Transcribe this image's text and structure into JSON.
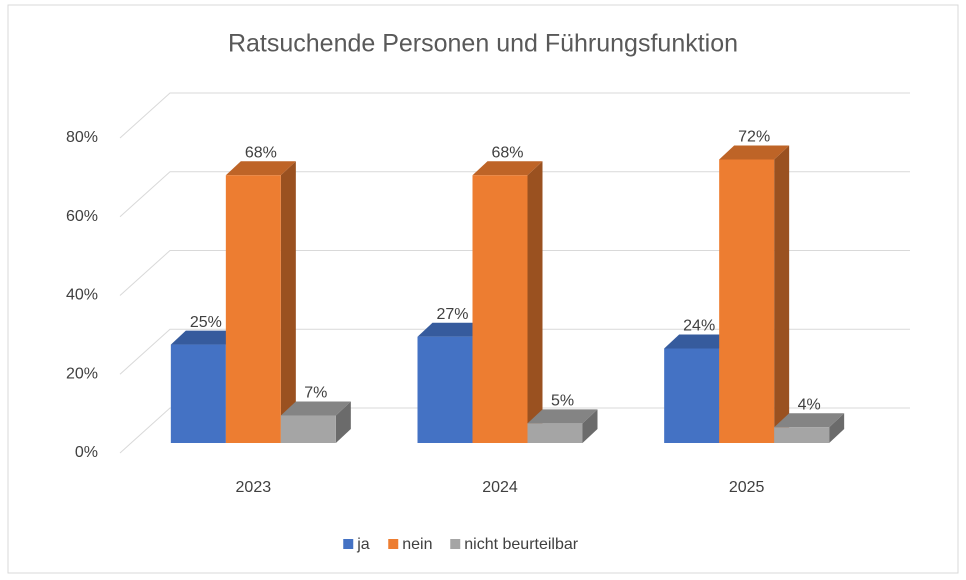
{
  "chart_data": {
    "type": "bar3d",
    "title": "Ratsuchende Personen und Führungsfunktion",
    "categories": [
      "2023",
      "2024",
      "2025"
    ],
    "series": [
      {
        "name": "ja",
        "color": "#4472c4",
        "values": [
          25,
          27,
          24
        ],
        "value_labels": [
          "25%",
          "27%",
          "24%"
        ]
      },
      {
        "name": "nein",
        "color": "#ed7d31",
        "values": [
          68,
          68,
          72
        ],
        "value_labels": [
          "68%",
          "68%",
          "72%"
        ]
      },
      {
        "name": "nicht beurteilbar",
        "color": "#a5a5a5",
        "values": [
          7,
          5,
          4
        ],
        "value_labels": [
          "7%",
          "5%",
          "4%"
        ]
      }
    ],
    "ylim": [
      0,
      80
    ],
    "yticks": [
      {
        "value": 0,
        "label": "0%"
      },
      {
        "value": 20,
        "label": "20%"
      },
      {
        "value": 40,
        "label": "40%"
      },
      {
        "value": 60,
        "label": "60%"
      },
      {
        "value": 80,
        "label": "80%"
      }
    ],
    "grid": true,
    "legend": "bottom"
  }
}
